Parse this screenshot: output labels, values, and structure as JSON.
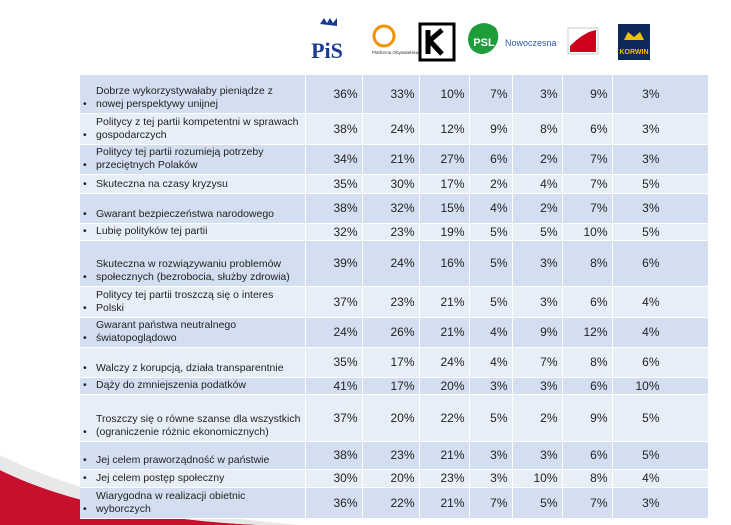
{
  "header": {
    "logos": [
      "PiS",
      "Platforma Obywatelska",
      null,
      "PSL",
      "Nowoczesna",
      null,
      "KORWIN"
    ]
  },
  "table": {
    "rows": [
      [
        "Dobrze wykorzystywałaby pieniądze z nowej perspektywy unijnej",
        "36%",
        "33%",
        "10%",
        "7%",
        "3%",
        "9%",
        "3%"
      ],
      [
        "Politycy z tej partii kompetentni w sprawach gospodarczych",
        "38%",
        "24%",
        "12%",
        "9%",
        "8%",
        "6%",
        "3%"
      ],
      [
        "Politycy tej partii rozumieją potrzeby przeciętnych Polaków",
        "34%",
        "21%",
        "27%",
        "6%",
        "2%",
        "7%",
        "3%"
      ],
      [
        "Skuteczna na czasy kryzysu",
        "35%",
        "30%",
        "17%",
        "2%",
        "4%",
        "7%",
        "5%"
      ],
      [
        "Gwarant bezpieczeństwa narodowego",
        "38%",
        "32%",
        "15%",
        "4%",
        "2%",
        "7%",
        "3%"
      ],
      [
        "Lubię polityków tej partii",
        "32%",
        "23%",
        "19%",
        "5%",
        "5%",
        "10%",
        "5%"
      ],
      [
        "Skuteczna w rozwiązywaniu problemów społecznych (bezrobocia, służby zdrowia)",
        "39%",
        "24%",
        "16%",
        "5%",
        "3%",
        "8%",
        "6%"
      ],
      [
        "Politycy tej partii troszczą się o interes Polski",
        "37%",
        "23%",
        "21%",
        "5%",
        "3%",
        "6%",
        "4%"
      ],
      [
        "Gwarant państwa neutralnego światopoglądowo",
        "24%",
        "26%",
        "21%",
        "4%",
        "9%",
        "12%",
        "4%"
      ],
      [
        "Walczy z korupcją, działa transparentnie",
        "35%",
        "17%",
        "24%",
        "4%",
        "7%",
        "8%",
        "6%"
      ],
      [
        "Dąży do zmniejszenia podatków",
        "41%",
        "17%",
        "20%",
        "3%",
        "3%",
        "6%",
        "10%"
      ],
      [
        "Troszczy się o równe szanse dla wszystkich (ograniczenie różnic ekonomicznych)",
        "37%",
        "20%",
        "22%",
        "5%",
        "2%",
        "9%",
        "5%"
      ],
      [
        "Jej celem praworządność w państwie",
        "38%",
        "23%",
        "21%",
        "3%",
        "3%",
        "6%",
        "5%"
      ],
      [
        "Jej celem postęp społeczny",
        "30%",
        "20%",
        "23%",
        "3%",
        "10%",
        "8%",
        "4%"
      ],
      [
        "Wiarygodna w realizacji obietnic wyborczych",
        "36%",
        "22%",
        "21%",
        "7%",
        "5%",
        "7%",
        "3%"
      ]
    ]
  }
}
